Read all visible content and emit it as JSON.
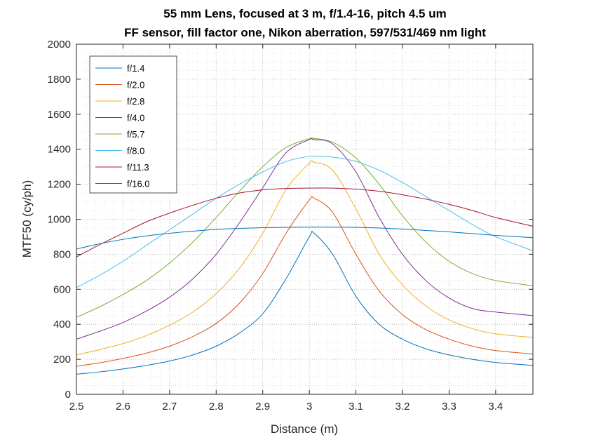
{
  "chart_data": {
    "type": "line",
    "title_lines": [
      "55 mm Lens, focused at 3 m, f/1.4-16, pitch 4.5 um",
      "FF sensor, fill factor one, Nikon aberration, 597/531/469 nm light"
    ],
    "xlabel": "Distance (m)",
    "ylabel": "MTF50 (cy/ph)",
    "xlim": [
      2.5,
      3.48
    ],
    "ylim": [
      0,
      2000
    ],
    "x_ticks": [
      2.5,
      2.6,
      2.7,
      2.8,
      2.9,
      3,
      3.1,
      3.2,
      3.3,
      3.4
    ],
    "x_tick_labels": [
      "2.5",
      "2.6",
      "2.7",
      "2.8",
      "2.9",
      "3",
      "3.1",
      "3.2",
      "3.3",
      "3.4"
    ],
    "y_ticks": [
      0,
      200,
      400,
      600,
      800,
      1000,
      1200,
      1400,
      1600,
      1800,
      2000
    ],
    "y_tick_labels": [
      "0",
      "200",
      "400",
      "600",
      "800",
      "1000",
      "1200",
      "1400",
      "1600",
      "1800",
      "2000"
    ],
    "grid": "dotted, on",
    "legend_position": "top-left",
    "x": [
      2.5,
      2.55,
      2.6,
      2.65,
      2.7,
      2.75,
      2.8,
      2.85,
      2.9,
      2.95,
      3.0,
      3.01,
      3.05,
      3.1,
      3.15,
      3.2,
      3.25,
      3.3,
      3.35,
      3.4,
      3.48
    ],
    "series": [
      {
        "name": "f/1.4",
        "color": "#0072BD",
        "values": [
          115,
          128,
          145,
          165,
          190,
          225,
          275,
          350,
          460,
          660,
          900,
          920,
          800,
          560,
          400,
          315,
          260,
          225,
          200,
          182,
          165
        ]
      },
      {
        "name": "f/2.0",
        "color": "#D95319",
        "values": [
          160,
          180,
          205,
          235,
          275,
          330,
          405,
          520,
          690,
          920,
          1110,
          1120,
          1040,
          800,
          590,
          455,
          370,
          315,
          275,
          250,
          230
        ]
      },
      {
        "name": "f/2.8",
        "color": "#EDB120",
        "values": [
          225,
          255,
          290,
          335,
          395,
          470,
          575,
          720,
          920,
          1170,
          1320,
          1325,
          1280,
          1060,
          800,
          625,
          505,
          425,
          375,
          345,
          325
        ]
      },
      {
        "name": "f/4.0",
        "color": "#7E2F8E",
        "values": [
          315,
          360,
          410,
          475,
          555,
          660,
          800,
          980,
          1180,
          1380,
          1455,
          1455,
          1430,
          1270,
          1010,
          800,
          650,
          550,
          490,
          470,
          450
        ]
      },
      {
        "name": "f/5.7",
        "color": "#77AC30",
        "values": [
          440,
          500,
          570,
          650,
          750,
          870,
          1010,
          1160,
          1300,
          1410,
          1460,
          1462,
          1440,
          1350,
          1200,
          1020,
          870,
          760,
          690,
          650,
          620
        ]
      },
      {
        "name": "f/8.0",
        "color": "#4DBEEE",
        "values": [
          610,
          680,
          760,
          850,
          940,
          1030,
          1120,
          1200,
          1270,
          1330,
          1360,
          1360,
          1355,
          1330,
          1280,
          1210,
          1130,
          1050,
          970,
          900,
          820
        ]
      },
      {
        "name": "f/11.3",
        "color": "#A2142F",
        "values": [
          785,
          855,
          920,
          985,
          1035,
          1080,
          1120,
          1150,
          1168,
          1176,
          1178,
          1178,
          1178,
          1172,
          1160,
          1140,
          1115,
          1085,
          1050,
          1010,
          960
        ]
      },
      {
        "name": "f/16.0",
        "color": "#0072BD",
        "values": [
          830,
          860,
          885,
          905,
          920,
          932,
          942,
          948,
          952,
          954,
          955,
          955,
          955,
          954,
          950,
          944,
          936,
          928,
          918,
          908,
          895
        ]
      }
    ]
  }
}
